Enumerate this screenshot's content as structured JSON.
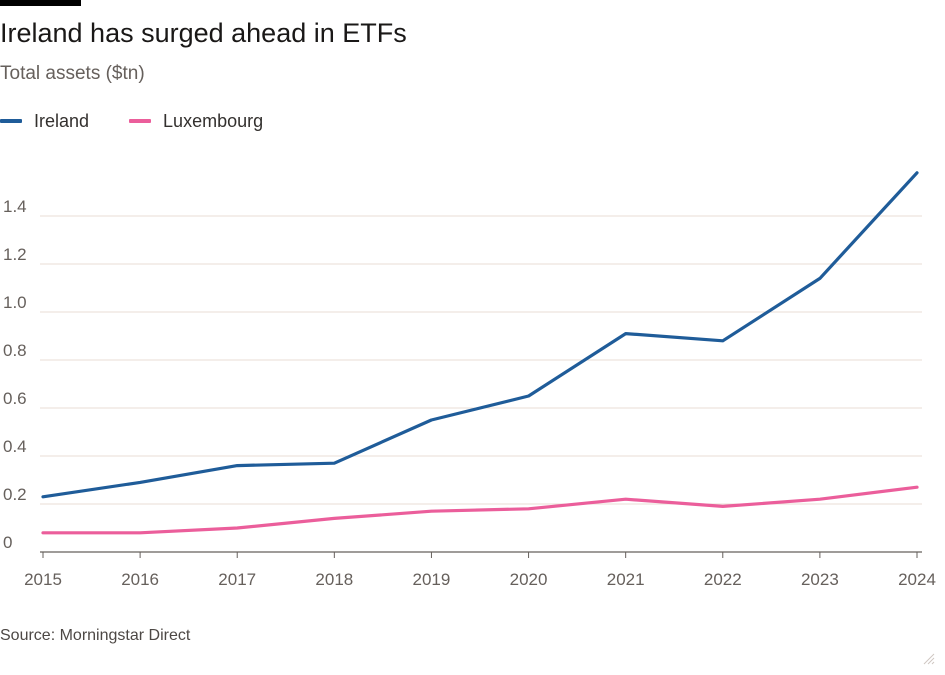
{
  "header": {
    "title": "Ireland has surged ahead in ETFs",
    "subtitle": "Total assets ($tn)"
  },
  "legend": [
    {
      "label": "Ireland",
      "color": "#1f5c99"
    },
    {
      "label": "Luxembourg",
      "color": "#eb5e9b"
    }
  ],
  "footer": {
    "source": "Source: Morningstar Direct"
  },
  "colors": {
    "grid": "#e9ded5",
    "axis": "#66605c",
    "background": "#ffffff"
  },
  "chart_data": {
    "type": "line",
    "title": "Ireland has surged ahead in ETFs",
    "subtitle": "Total assets ($tn)",
    "x": [
      "2015",
      "2016",
      "2017",
      "2018",
      "2019",
      "2020",
      "2021",
      "2022",
      "2023",
      "2024"
    ],
    "yticks": [
      "0",
      "0.2",
      "0.4",
      "0.6",
      "0.8",
      "1.0",
      "1.2",
      "1.4"
    ],
    "ylim": [
      0,
      1.6
    ],
    "grid": true,
    "legend_position": "top-left",
    "series": [
      {
        "name": "Ireland",
        "color": "#1f5c99",
        "values": [
          0.23,
          0.29,
          0.36,
          0.37,
          0.55,
          0.65,
          0.91,
          0.88,
          1.14,
          1.58
        ]
      },
      {
        "name": "Luxembourg",
        "color": "#eb5e9b",
        "values": [
          0.08,
          0.08,
          0.1,
          0.14,
          0.17,
          0.18,
          0.22,
          0.19,
          0.22,
          0.27
        ]
      }
    ]
  }
}
